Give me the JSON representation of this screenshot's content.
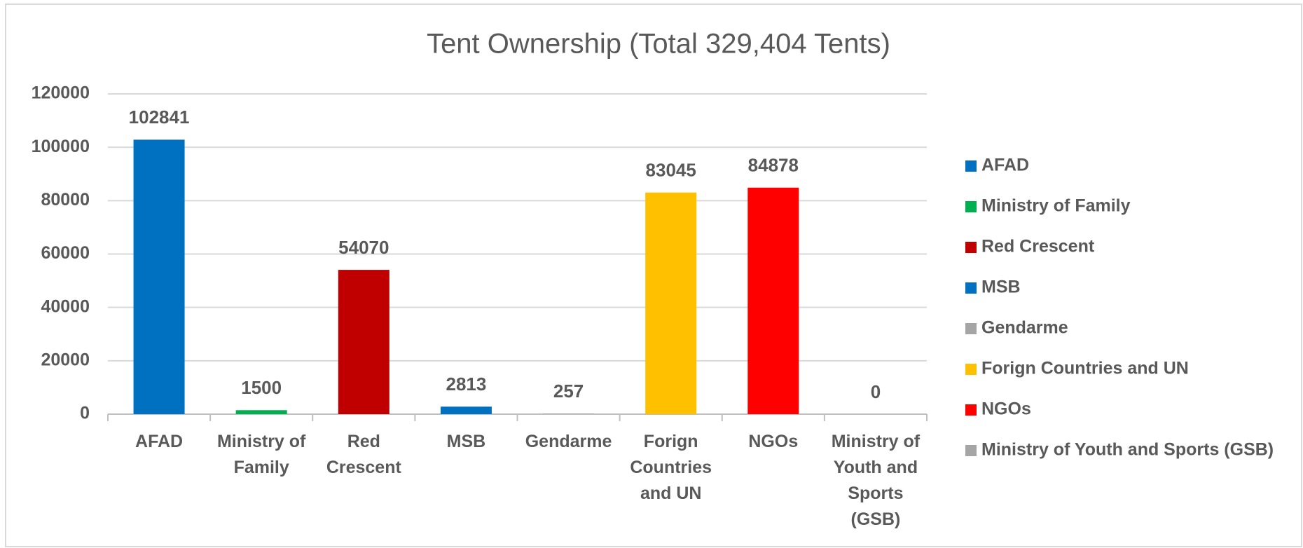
{
  "chart_data": {
    "type": "bar",
    "title": "Tent Ownership (Total 329,404 Tents)",
    "categories": [
      "AFAD",
      "Ministry of Family",
      "Red Crescent",
      "MSB",
      "Gendarme",
      "Forign Countries and UN",
      "NGOs",
      "Ministry of Youth and Sports (GSB)"
    ],
    "values": [
      102841,
      1500,
      54070,
      2813,
      257,
      83045,
      84878,
      0
    ],
    "colors": [
      "#0070c0",
      "#00b050",
      "#c00000",
      "#0070c0",
      "#a5a5a5",
      "#ffc000",
      "#ff0000",
      "#a5a5a5"
    ],
    "ylim": [
      0,
      120000
    ],
    "yticks": [
      0,
      20000,
      40000,
      60000,
      80000,
      100000,
      120000
    ],
    "grid": true,
    "legend": "right"
  }
}
